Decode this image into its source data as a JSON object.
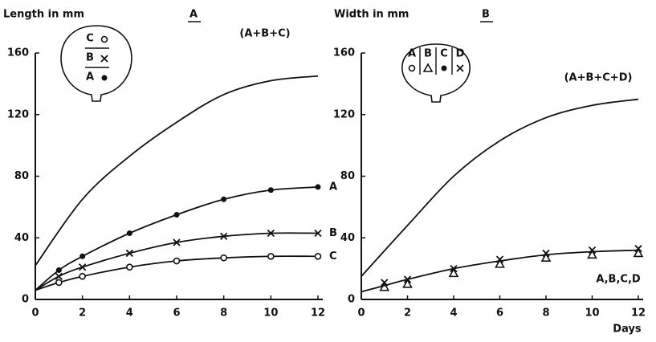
{
  "chart_data": [
    {
      "type": "line",
      "panel": "A",
      "ylabel": "Length in mm",
      "inset_labels": [
        "C",
        "B",
        "A"
      ],
      "xlim": [
        0,
        12
      ],
      "xticks": [
        0,
        2,
        4,
        6,
        8,
        10,
        12
      ],
      "ylim": [
        0,
        160
      ],
      "yticks": [
        0,
        40,
        80,
        120,
        160
      ],
      "series": [
        {
          "name": "(A+B+C)",
          "line": true,
          "x": [
            0,
            2,
            4,
            6,
            8,
            10,
            12
          ],
          "values": [
            22,
            65,
            93,
            115,
            133,
            142,
            145
          ]
        },
        {
          "name": "A",
          "line": true,
          "x": [
            0,
            1,
            2,
            4,
            6,
            8,
            10,
            12
          ],
          "values": [
            6,
            19,
            28,
            43,
            55,
            65,
            71,
            73
          ]
        },
        {
          "name": "B",
          "line": true,
          "x": [
            0,
            1,
            2,
            4,
            6,
            8,
            10,
            12
          ],
          "values": [
            6,
            15,
            21,
            30,
            37,
            41,
            43,
            43
          ]
        },
        {
          "name": "C",
          "line": true,
          "x": [
            0,
            1,
            2,
            4,
            6,
            8,
            10,
            12
          ],
          "values": [
            6,
            11,
            15,
            21,
            25,
            27,
            28,
            28
          ]
        },
        {
          "marker": "filled-circle",
          "x": [
            1,
            2,
            4,
            6,
            8,
            10,
            12
          ],
          "values": [
            19,
            28,
            43,
            55,
            65,
            71,
            73
          ]
        },
        {
          "marker": "cross",
          "x": [
            1,
            2,
            4,
            6,
            8,
            10,
            12
          ],
          "values": [
            15,
            21,
            30,
            37,
            41,
            43,
            43
          ]
        },
        {
          "marker": "open-circle",
          "x": [
            1,
            2,
            4,
            6,
            8,
            10,
            12
          ],
          "values": [
            11,
            15,
            21,
            25,
            27,
            28,
            28
          ]
        }
      ]
    },
    {
      "type": "line",
      "panel": "B",
      "ylabel": "Width in mm",
      "xlabel": "Days",
      "inset_labels": [
        "A",
        "B",
        "C",
        "D"
      ],
      "xlim": [
        0,
        12
      ],
      "xticks": [
        0,
        2,
        4,
        6,
        8,
        10,
        12
      ],
      "ylim": [
        0,
        160
      ],
      "yticks": [
        0,
        40,
        80,
        120,
        160
      ],
      "series": [
        {
          "name": "(A+B+C+D)",
          "line": true,
          "x": [
            0,
            2,
            4,
            6,
            8,
            10,
            12
          ],
          "values": [
            15,
            48,
            80,
            103,
            118,
            126,
            130
          ]
        },
        {
          "name": "A,B,C,D",
          "line": true,
          "x": [
            0,
            1,
            2,
            4,
            6,
            8,
            10,
            12
          ],
          "values": [
            5,
            9,
            13,
            20,
            25,
            29,
            31,
            32
          ]
        },
        {
          "marker": "cross",
          "x": [
            1,
            2,
            4,
            6,
            8,
            10,
            12
          ],
          "values": [
            11,
            13,
            20,
            26,
            30,
            32,
            33
          ]
        },
        {
          "marker": "triangle",
          "x": [
            1,
            2,
            4,
            6,
            8,
            10,
            12
          ],
          "values": [
            8,
            10,
            17,
            23,
            27,
            29,
            30
          ]
        }
      ]
    }
  ]
}
